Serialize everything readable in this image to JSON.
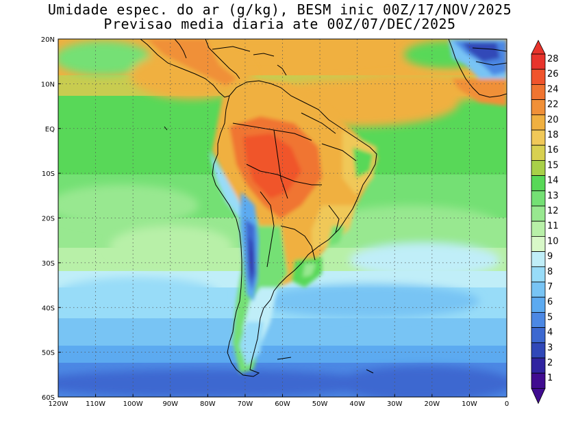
{
  "header": {
    "title_line1": "Umidade espec. do ar (g/kg), BESM inic 00Z/17/NOV/2025",
    "title_line2": "Previsao media diaria ate 00Z/07/DEC/2025"
  },
  "map": {
    "lon_range": [
      -120,
      0
    ],
    "lat_range": [
      -60,
      20
    ],
    "lon_ticks": [
      {
        "v": -120,
        "label": "120W"
      },
      {
        "v": -110,
        "label": "110W"
      },
      {
        "v": -100,
        "label": "100W"
      },
      {
        "v": -90,
        "label": "90W"
      },
      {
        "v": -80,
        "label": "80W"
      },
      {
        "v": -70,
        "label": "70W"
      },
      {
        "v": -60,
        "label": "60W"
      },
      {
        "v": -50,
        "label": "50W"
      },
      {
        "v": -40,
        "label": "40W"
      },
      {
        "v": -30,
        "label": "30W"
      },
      {
        "v": -20,
        "label": "20W"
      },
      {
        "v": -10,
        "label": "10W"
      },
      {
        "v": 0,
        "label": "0"
      }
    ],
    "lat_ticks": [
      {
        "v": 20,
        "label": "20N"
      },
      {
        "v": 10,
        "label": "10N"
      },
      {
        "v": 0,
        "label": "EQ"
      },
      {
        "v": -10,
        "label": "10S"
      },
      {
        "v": -20,
        "label": "20S"
      },
      {
        "v": -30,
        "label": "30S"
      },
      {
        "v": -40,
        "label": "40S"
      },
      {
        "v": -50,
        "label": "50S"
      },
      {
        "v": -60,
        "label": "60S"
      }
    ],
    "grid": "dotted"
  },
  "colorbar": {
    "levels": [
      {
        "label": "28",
        "color": "#e8342c"
      },
      {
        "label": "26",
        "color": "#f0542c"
      },
      {
        "label": "24",
        "color": "#f07430"
      },
      {
        "label": "22",
        "color": "#f09038"
      },
      {
        "label": "20",
        "color": "#f0b040"
      },
      {
        "label": "18",
        "color": "#f0c858"
      },
      {
        "label": "16",
        "color": "#d8d050"
      },
      {
        "label": "15",
        "color": "#a8d048"
      },
      {
        "label": "14",
        "color": "#58d858"
      },
      {
        "label": "13",
        "color": "#74e074"
      },
      {
        "label": "12",
        "color": "#98e890"
      },
      {
        "label": "11",
        "color": "#b8f0a8"
      },
      {
        "label": "10",
        "color": "#d8f8c8"
      },
      {
        "label": "9",
        "color": "#c0eef8"
      },
      {
        "label": "8",
        "color": "#98dcf8"
      },
      {
        "label": "7",
        "color": "#78c4f4"
      },
      {
        "label": "6",
        "color": "#5caaf0"
      },
      {
        "label": "5",
        "color": "#4c88e4"
      },
      {
        "label": "4",
        "color": "#3c68d0"
      },
      {
        "label": "3",
        "color": "#3048b8"
      },
      {
        "label": "2",
        "color": "#3024a0"
      },
      {
        "label": "1",
        "color": "#400c90"
      }
    ],
    "top_arrow_color": "#e8342c",
    "bottom_arrow_color": "#400c90"
  }
}
